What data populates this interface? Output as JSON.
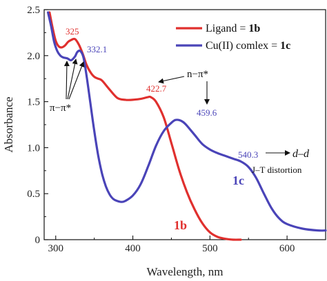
{
  "chart_data": {
    "type": "line",
    "xlabel": "Wavelength, nm",
    "ylabel": "Absorbance",
    "xlim": [
      285,
      650
    ],
    "ylim": [
      0,
      2.5
    ],
    "x_ticks": [
      300,
      400,
      500,
      600
    ],
    "x_tick_labels": [
      "300",
      "400",
      "500",
      "600"
    ],
    "y_ticks": [
      0,
      0.5,
      1.0,
      1.5,
      2.0,
      2.5
    ],
    "y_tick_labels": [
      "0",
      "0.5",
      "1.0",
      "1.5",
      "2.0",
      "2.5"
    ],
    "grid": false,
    "legend_position": "top-right",
    "series": [
      {
        "name": "Ligand = 1b",
        "legend_prefix": "Ligand = ",
        "legend_bold": "1b",
        "color": "#e0302e",
        "x": [
          292,
          296,
          300,
          304,
          308,
          312,
          316,
          320,
          325,
          330,
          335,
          340,
          345,
          350,
          355,
          360,
          370,
          380,
          390,
          400,
          410,
          415,
          420,
          423,
          430,
          440,
          450,
          460,
          470,
          480,
          490,
          500,
          510,
          520,
          530,
          540
        ],
        "y": [
          2.47,
          2.3,
          2.16,
          2.1,
          2.09,
          2.11,
          2.15,
          2.17,
          2.18,
          2.12,
          2.02,
          1.9,
          1.82,
          1.77,
          1.75,
          1.73,
          1.63,
          1.54,
          1.52,
          1.52,
          1.53,
          1.54,
          1.55,
          1.55,
          1.5,
          1.33,
          1.05,
          0.76,
          0.52,
          0.33,
          0.18,
          0.08,
          0.03,
          0.01,
          0.0,
          0.0
        ]
      },
      {
        "name": "Cu(II) comlex = 1c",
        "legend_prefix": "Cu(II) comlex = ",
        "legend_bold": "1c",
        "color": "#4a44b8",
        "x": [
          290,
          294,
          298,
          302,
          306,
          310,
          315,
          320,
          325,
          328,
          332,
          336,
          340,
          345,
          350,
          355,
          360,
          365,
          370,
          375,
          380,
          385,
          390,
          400,
          410,
          420,
          430,
          440,
          450,
          455,
          460,
          465,
          470,
          480,
          490,
          500,
          510,
          520,
          530,
          540,
          550,
          560,
          570,
          580,
          590,
          600,
          620,
          640,
          650
        ],
        "y": [
          2.47,
          2.32,
          2.15,
          2.05,
          2.0,
          1.98,
          1.97,
          1.95,
          1.99,
          2.04,
          2.05,
          1.98,
          1.78,
          1.48,
          1.18,
          0.92,
          0.72,
          0.58,
          0.49,
          0.44,
          0.42,
          0.41,
          0.42,
          0.48,
          0.6,
          0.8,
          1.02,
          1.18,
          1.27,
          1.3,
          1.3,
          1.28,
          1.24,
          1.14,
          1.04,
          0.98,
          0.94,
          0.91,
          0.88,
          0.85,
          0.79,
          0.67,
          0.5,
          0.34,
          0.23,
          0.17,
          0.12,
          0.1,
          0.1
        ]
      }
    ],
    "annotations": {
      "peak_325": {
        "text": "325",
        "color": "#e0302e"
      },
      "peak_332": {
        "text": "332.1",
        "color": "#4a44b8"
      },
      "peak_4227": {
        "text": "422.7",
        "color": "#e0302e"
      },
      "peak_4596": {
        "text": "459.6",
        "color": "#4a44b8"
      },
      "peak_5403": {
        "text": "540.3",
        "color": "#4a44b8"
      },
      "pi_pi": "π−π*",
      "n_pi": "n−π*",
      "d_d": "d–d",
      "jt": "J–T distortion",
      "label_1b": "1b",
      "label_1c": "1c"
    }
  }
}
